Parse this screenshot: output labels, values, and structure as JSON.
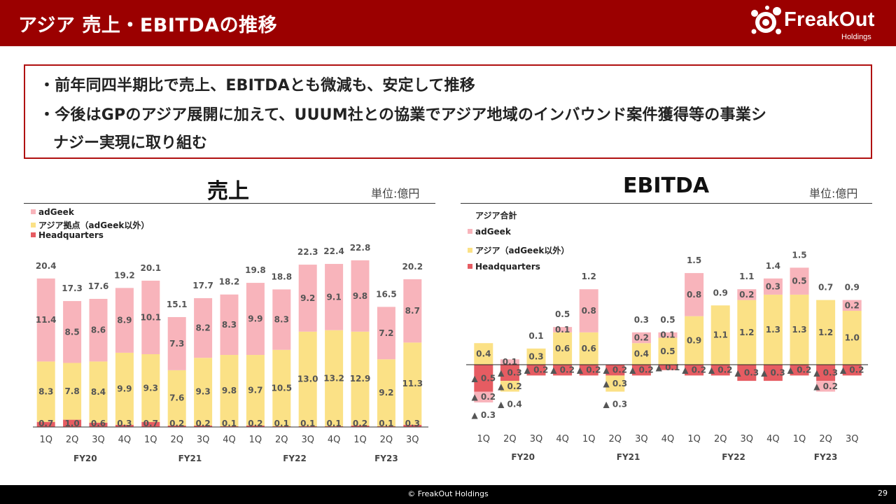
{
  "header": {
    "title": "アジア 売上・EBITDAの推移"
  },
  "logo": {
    "name": "FreakOut",
    "sub": "Holdings"
  },
  "summary": {
    "bullet1": "・前年同四半期比で売上、EBITDAとも微減も、安定して推移",
    "bullet2": "・今後はGPのアジア展開に加えて、UUUM社との協業でアジア地域のインバウンド案件獲得等の事業シ",
    "bullet2_cont": "ナジー実現に取り組む"
  },
  "colors": {
    "headquarters": "#e65c62",
    "asia": "#fbe186",
    "adgeek": "#f8b4bb",
    "brand": "#9b0000"
  },
  "chart_data": [
    {
      "type": "bar",
      "title": "売上",
      "unit": "単位:億円",
      "legend": [
        "adGeek",
        "アジア拠点（adGeek以外）",
        "Headquarters"
      ],
      "categories": [
        "1Q",
        "2Q",
        "3Q",
        "4Q",
        "1Q",
        "2Q",
        "3Q",
        "4Q",
        "1Q",
        "2Q",
        "3Q",
        "4Q",
        "1Q",
        "2Q",
        "3Q"
      ],
      "fiscal_years": [
        {
          "label": "FY20",
          "quarters": 4
        },
        {
          "label": "FY21",
          "quarters": 4
        },
        {
          "label": "FY22",
          "quarters": 4
        },
        {
          "label": "FY23",
          "quarters": 3
        }
      ],
      "series": [
        {
          "name": "Headquarters",
          "values": [
            0.7,
            1.0,
            0.6,
            0.3,
            0.7,
            0.2,
            0.2,
            0.1,
            0.2,
            0.1,
            0.1,
            0.1,
            0.2,
            0.1,
            0.3
          ]
        },
        {
          "name": "アジア拠点（adGeek以外）",
          "values": [
            8.3,
            7.8,
            8.4,
            9.9,
            9.3,
            7.6,
            9.3,
            9.8,
            9.7,
            10.5,
            13.0,
            13.2,
            12.9,
            9.2,
            11.3
          ]
        },
        {
          "name": "adGeek",
          "values": [
            11.4,
            8.5,
            8.6,
            8.9,
            10.1,
            7.3,
            8.2,
            8.3,
            9.9,
            8.3,
            9.2,
            9.1,
            9.8,
            7.2,
            8.7
          ]
        }
      ],
      "totals": [
        20.4,
        17.3,
        17.6,
        19.2,
        20.1,
        15.1,
        17.7,
        18.2,
        19.8,
        18.8,
        22.3,
        22.4,
        22.8,
        16.5,
        20.2
      ]
    },
    {
      "type": "bar",
      "title": "EBITDA",
      "unit": "単位:億円",
      "legend": [
        "アジア合計",
        "adGeek",
        "アジア（adGeek以外）",
        "Headquarters"
      ],
      "negative_marker": "▲",
      "categories": [
        "1Q",
        "2Q",
        "3Q",
        "4Q",
        "1Q",
        "2Q",
        "3Q",
        "4Q",
        "1Q",
        "2Q",
        "3Q",
        "4Q",
        "1Q",
        "2Q",
        "3Q"
      ],
      "fiscal_years": [
        {
          "label": "FY20",
          "quarters": 4
        },
        {
          "label": "FY21",
          "quarters": 4
        },
        {
          "label": "FY22",
          "quarters": 4
        },
        {
          "label": "FY23",
          "quarters": 3
        }
      ],
      "series": [
        {
          "name": "Headquarters",
          "values": [
            -0.5,
            -0.3,
            -0.2,
            -0.2,
            -0.2,
            -0.2,
            -0.2,
            -0.1,
            -0.2,
            -0.2,
            -0.3,
            -0.3,
            -0.2,
            -0.3,
            -0.2
          ]
        },
        {
          "name": "アジア（adGeek以外）",
          "values": [
            0.4,
            -0.2,
            0.3,
            0.6,
            0.6,
            -0.3,
            0.4,
            0.5,
            0.9,
            1.1,
            1.2,
            1.3,
            1.3,
            1.2,
            1.0
          ]
        },
        {
          "name": "adGeek",
          "values": [
            -0.2,
            0.1,
            null,
            0.1,
            0.8,
            null,
            0.2,
            0.1,
            0.8,
            null,
            0.2,
            0.3,
            0.5,
            -0.2,
            0.2
          ]
        }
      ],
      "totals": [
        -0.3,
        -0.4,
        0.1,
        0.5,
        1.2,
        -0.3,
        0.3,
        0.5,
        1.5,
        0.9,
        1.1,
        1.4,
        1.5,
        0.7,
        0.9
      ]
    }
  ],
  "footer": {
    "copyright": "© FreakOut Holdings",
    "page": "29"
  }
}
